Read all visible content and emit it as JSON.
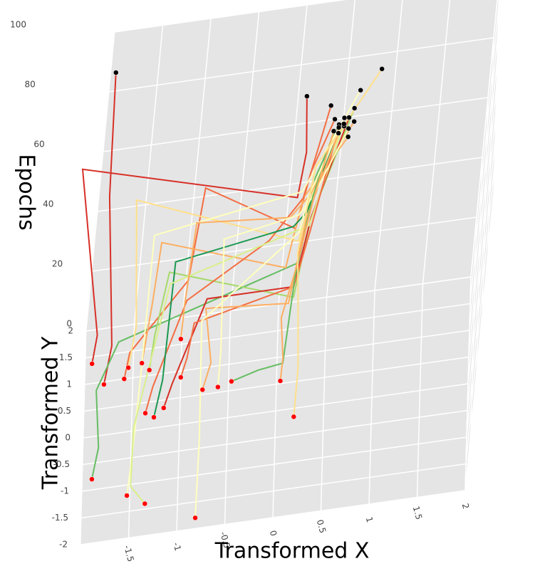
{
  "chart_data": {
    "type": "line3d",
    "x_label": "Transformed X",
    "y_label": "Transformed Y",
    "z_label": "Epochs",
    "xlim": [
      -2,
      2
    ],
    "xticks": [
      -1.5,
      -1,
      -0.5,
      0,
      0.5,
      1,
      1.5,
      2
    ],
    "ylim": [
      -2,
      2
    ],
    "yticks": [
      -2,
      -1.5,
      -1,
      -0.5,
      0,
      0.5,
      1,
      1.5,
      2
    ],
    "zlim": [
      0,
      100
    ],
    "zticks": [
      0,
      20,
      40,
      60,
      80,
      100
    ],
    "start_color": "#ff0000",
    "end_color": "#000000",
    "series": [
      {
        "color": "#d73027",
        "x": [
          -1.93,
          -1.9,
          -2.2,
          0.05,
          0.1,
          0.05
        ],
        "y": [
          1.37,
          1.45,
          2.0,
          0.9,
          0.9,
          0.95
        ],
        "z": [
          0,
          8,
          55,
          55,
          70,
          88
        ]
      },
      {
        "color": "#d73027",
        "x": [
          -1.8,
          -1.75,
          -1.9,
          -1.95
        ],
        "y": [
          0.95,
          1.1,
          1.7,
          1.9
        ],
        "z": [
          0,
          10,
          50,
          88
        ]
      },
      {
        "color": "#66bd63",
        "x": [
          -1.9,
          -1.85,
          -1.9,
          -1.7,
          0.1,
          0.2,
          0.4
        ],
        "y": [
          -0.8,
          -0.5,
          0.3,
          0.6,
          0.5,
          0.4,
          0.5
        ],
        "z": [
          0,
          5,
          10,
          20,
          40,
          70,
          85
        ]
      },
      {
        "color": "#f46d43",
        "x": [
          -1.59,
          -1.55,
          -1.0,
          -0.9,
          0.05,
          0.15,
          0.35
        ],
        "y": [
          1.0,
          1.2,
          1.3,
          1.6,
          0.6,
          0.5,
          0.5
        ],
        "z": [
          0,
          5,
          25,
          50,
          50,
          70,
          87
        ]
      },
      {
        "color": "#fee08b",
        "x": [
          -1.55,
          -1.5,
          -1.6,
          0.1,
          0.2,
          0.45
        ],
        "y": [
          1.2,
          1.4,
          2.0,
          0.8,
          0.5,
          0.4
        ],
        "z": [
          0,
          10,
          42,
          42,
          65,
          86
        ]
      },
      {
        "color": "#fdae61",
        "x": [
          -1.41,
          -1.35,
          -1.3,
          0.0,
          0.1,
          0.5
        ],
        "y": [
          1.25,
          1.5,
          1.8,
          1.0,
          0.6,
          0.3
        ],
        "z": [
          0,
          15,
          30,
          30,
          60,
          84
        ]
      },
      {
        "color": "#a6d96a",
        "x": [
          -1.33,
          -1.3,
          -1.2,
          0.1,
          0.2,
          0.55
        ],
        "y": [
          1.1,
          1.3,
          1.5,
          0.7,
          0.5,
          0.6
        ],
        "z": [
          0,
          8,
          25,
          25,
          55,
          88
        ]
      },
      {
        "color": "#f46d43",
        "x": [
          -1.36,
          -1.3,
          -1.0,
          -0.2,
          0.1,
          0.3
        ],
        "y": [
          0.3,
          0.5,
          1.2,
          1.0,
          0.6,
          0.6
        ],
        "z": [
          0,
          5,
          20,
          40,
          60,
          90
        ]
      },
      {
        "color": "#1a9850",
        "x": [
          -1.27,
          -1.2,
          -1.15,
          0.05,
          0.15,
          0.4
        ],
        "y": [
          0.2,
          0.6,
          1.4,
          1.2,
          0.6,
          0.45
        ],
        "z": [
          0,
          5,
          30,
          40,
          55,
          83
        ]
      },
      {
        "color": "#d73027",
        "x": [
          -1.17,
          -1.1,
          -0.8,
          0.1,
          0.2,
          0.5
        ],
        "y": [
          0.35,
          0.5,
          0.9,
          0.9,
          0.5,
          0.55
        ],
        "z": [
          0,
          5,
          25,
          25,
          55,
          86
        ]
      },
      {
        "color": "#ffffbf",
        "x": [
          -1.53,
          -1.5,
          -1.45,
          -1.4,
          0.1,
          0.6
        ],
        "y": [
          -1.2,
          -0.8,
          0.2,
          1.4,
          1.0,
          0.7
        ],
        "z": [
          0,
          5,
          15,
          40,
          55,
          92
        ]
      },
      {
        "color": "#d9ef8b",
        "x": [
          -1.34,
          -1.5,
          -1.5,
          -1.2,
          0.2,
          0.45
        ],
        "y": [
          -1.4,
          -1.2,
          -0.5,
          1.0,
          0.9,
          0.5
        ],
        "z": [
          0,
          3,
          10,
          30,
          45,
          85
        ]
      },
      {
        "color": "#fdae61",
        "x": [
          -1.01,
          -1.0,
          -0.95,
          0.0,
          0.15,
          0.55
        ],
        "y": [
          1.6,
          1.7,
          1.8,
          1.1,
          0.6,
          0.35
        ],
        "z": [
          0,
          10,
          35,
          45,
          60,
          88
        ]
      },
      {
        "color": "#f46d43",
        "x": [
          -1.0,
          -0.95,
          -0.9,
          0.1,
          0.2,
          0.4
        ],
        "y": [
          0.88,
          1.0,
          1.2,
          0.9,
          0.5,
          0.5
        ],
        "z": [
          0,
          4,
          12,
          25,
          50,
          84
        ]
      },
      {
        "color": "#fdae61",
        "x": [
          -0.77,
          -0.7,
          -0.8,
          0.05,
          0.15,
          0.45
        ],
        "y": [
          0.59,
          0.8,
          1.0,
          0.6,
          0.5,
          0.55
        ],
        "z": [
          0,
          5,
          20,
          25,
          55,
          86
        ]
      },
      {
        "color": "#ffffbf",
        "x": [
          -0.61,
          -0.6,
          -0.65,
          0.1,
          0.2,
          0.5
        ],
        "y": [
          0.6,
          1.0,
          1.7,
          1.4,
          0.6,
          0.4
        ],
        "z": [
          0,
          5,
          30,
          40,
          60,
          85
        ]
      },
      {
        "color": "#66bd63",
        "x": [
          -0.47,
          -0.2,
          0.05,
          0.1,
          0.2,
          0.35
        ],
        "y": [
          0.67,
          0.7,
          0.6,
          0.8,
          0.6,
          0.45
        ],
        "z": [
          0,
          2,
          5,
          30,
          60,
          84
        ]
      },
      {
        "color": "#ffffbf",
        "x": [
          -0.81,
          -0.8,
          -0.85,
          0.1,
          0.15,
          0.45
        ],
        "y": [
          -1.8,
          -0.6,
          0.5,
          0.8,
          0.6,
          0.5
        ],
        "z": [
          0,
          5,
          25,
          45,
          60,
          87
        ]
      },
      {
        "color": "#fdae61",
        "x": [
          0.04,
          0.05,
          0.0,
          0.1,
          0.2,
          0.35
        ],
        "y": [
          0.55,
          0.7,
          0.9,
          0.7,
          0.5,
          0.5
        ],
        "z": [
          0,
          5,
          15,
          35,
          60,
          83
        ]
      },
      {
        "color": "#fee08b",
        "x": [
          0.19,
          0.2,
          0.15,
          0.1,
          0.2,
          0.8
        ],
        "y": [
          -0.16,
          0.2,
          0.6,
          0.7,
          0.6,
          0.6
        ],
        "z": [
          0,
          10,
          25,
          40,
          70,
          100
        ]
      }
    ]
  }
}
